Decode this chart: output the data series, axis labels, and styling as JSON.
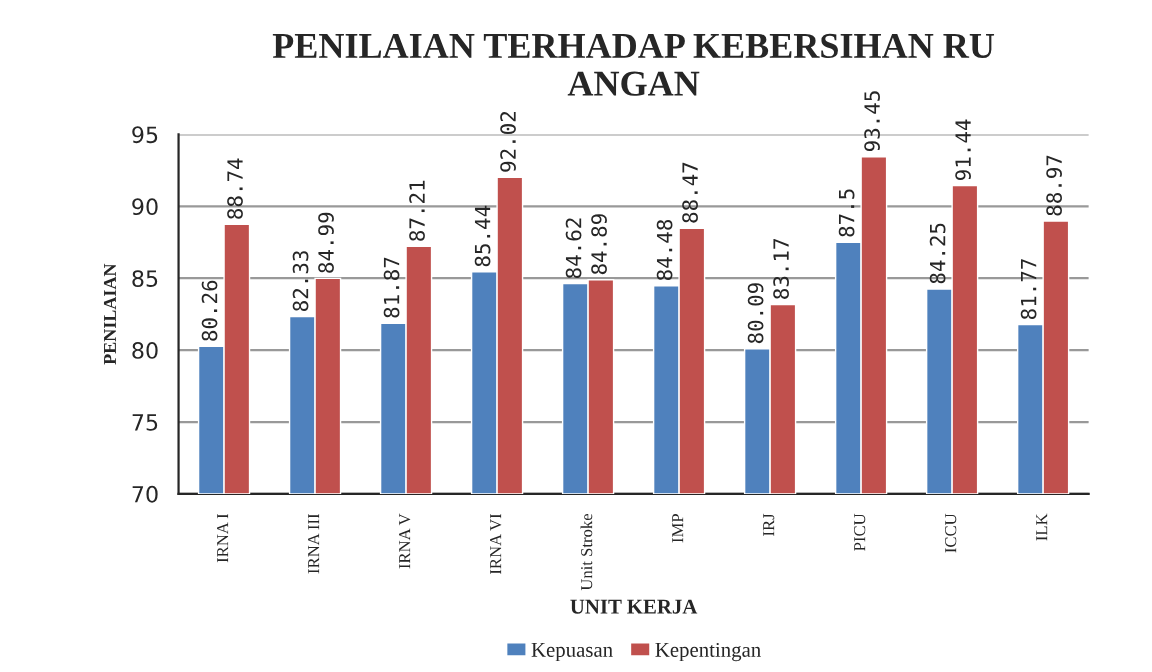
{
  "chart_data": {
    "type": "bar",
    "title": "PENILAIAN TERHADAP KEBERSIHAN RU\nANGAN",
    "xlabel": "UNIT KERJA",
    "ylabel": "PENILAIAN",
    "categories": [
      "IRNA I",
      "IRNA III",
      "IRNA V",
      "IRNA VI",
      "Unit Stroke",
      "IMP",
      "IRJ",
      "PICU",
      "ICCU",
      "ILK"
    ],
    "series": [
      {
        "name": "Kepuasan",
        "color": "#4f81bd",
        "values": [
          80.26,
          82.33,
          81.87,
          85.44,
          84.62,
          84.48,
          80.09,
          87.5,
          84.25,
          81.77
        ]
      },
      {
        "name": "Kepentingan",
        "color": "#c0504d",
        "values": [
          88.74,
          84.99,
          87.21,
          92.02,
          84.89,
          88.47,
          83.17,
          93.45,
          91.44,
          88.97
        ]
      }
    ],
    "ylim": [
      70,
      95
    ],
    "yticks": [
      70,
      75,
      80,
      85,
      90,
      95
    ],
    "grid": "y",
    "legend": "bottom",
    "data_labels": true
  }
}
